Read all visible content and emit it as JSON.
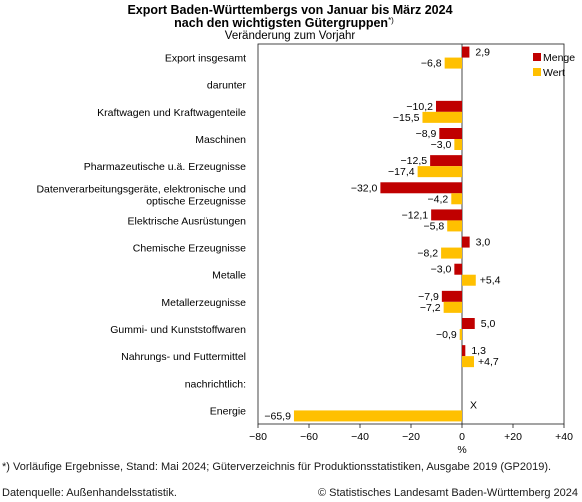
{
  "chart_data": {
    "type": "bar",
    "orientation": "horizontal",
    "title": "Export Baden-Württembergs von Januar bis März 2024",
    "title_line2": "nach den wichtigsten Gütergruppen",
    "title_note": "*)",
    "subtitle": "Veränderung zum Vorjahr",
    "xlabel": "%",
    "xlim": [
      -80,
      40
    ],
    "xticks": [
      -80,
      -60,
      -40,
      -20,
      0,
      20,
      40
    ],
    "xtick_labels": [
      "−80",
      "−60",
      "−40",
      "−20",
      "0",
      "+20",
      "+40"
    ],
    "legend_position": "top-right",
    "categories": [
      {
        "label": [
          "Export insgesamt"
        ],
        "menge": 2.9,
        "wert": -6.8,
        "menge_label": "2,9",
        "wert_label": "−6,8"
      },
      {
        "label": [
          "darunter"
        ],
        "heading": true
      },
      {
        "label": [
          "Kraftwagen und Kraftwagenteile"
        ],
        "menge": -10.2,
        "wert": -15.5,
        "menge_label": "−10,2",
        "wert_label": "−15,5"
      },
      {
        "label": [
          "Maschinen"
        ],
        "menge": -8.9,
        "wert": -3.0,
        "menge_label": "−8,9",
        "wert_label": "−3,0"
      },
      {
        "label": [
          "Pharmazeutische u.ä. Erzeugnisse"
        ],
        "menge": -12.5,
        "wert": -17.4,
        "menge_label": "−12,5",
        "wert_label": "−17,4"
      },
      {
        "label": [
          "Datenverarbeitungsgeräte, elektronische und",
          "optische Erzeugnisse"
        ],
        "menge": -32.0,
        "wert": -4.2,
        "menge_label": "−32,0",
        "wert_label": "−4,2"
      },
      {
        "label": [
          "Elektrische Ausrüstungen"
        ],
        "menge": -12.1,
        "wert": -5.8,
        "menge_label": "−12,1",
        "wert_label": "−5,8"
      },
      {
        "label": [
          "Chemische Erzeugnisse"
        ],
        "menge": 3.0,
        "wert": -8.2,
        "menge_label": "3,0",
        "wert_label": "−8,2"
      },
      {
        "label": [
          "Metalle"
        ],
        "menge": -3.0,
        "wert": 5.4,
        "menge_label": "−3,0",
        "wert_label": "+5,4"
      },
      {
        "label": [
          "Metallerzeugnisse"
        ],
        "menge": -7.9,
        "wert": -7.2,
        "menge_label": "−7,9",
        "wert_label": "−7,2"
      },
      {
        "label": [
          "Gummi- und Kunststoffwaren"
        ],
        "menge": 5.0,
        "wert": -0.9,
        "menge_label": "5,0",
        "wert_label": "−0,9"
      },
      {
        "label": [
          "Nahrungs- und Futtermittel"
        ],
        "menge": 1.3,
        "wert": 4.7,
        "menge_label": "1,3",
        "wert_label": "+4,7"
      },
      {
        "label": [
          "nachrichtlich:"
        ],
        "heading": true
      },
      {
        "label": [
          "Energie"
        ],
        "menge": null,
        "wert": -65.9,
        "menge_label": "X",
        "wert_label": "−65,9"
      }
    ],
    "series": [
      {
        "name": "Menge",
        "key": "menge",
        "color": "#c00000"
      },
      {
        "name": "Wert",
        "key": "wert",
        "color": "#ffc000"
      }
    ]
  },
  "footnote": "*) Vorläufige Ergebnisse, Stand: Mai 2024; Güterverzeichnis für Produktionsstatistiken, Ausgabe 2019 (GP2019).",
  "source": "Datenquelle: Außenhandelsstatistik.",
  "copyright": "© Statistisches Landesamt Baden-Württemberg 2024"
}
